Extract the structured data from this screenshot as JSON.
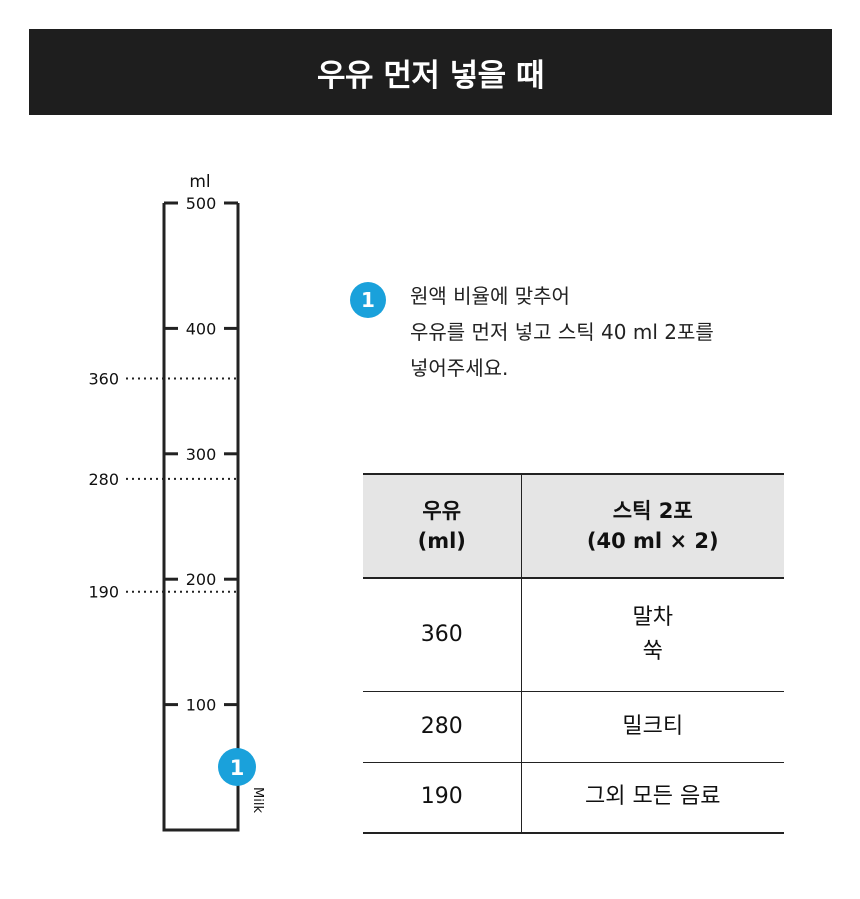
{
  "title": "우유 먼저 넣을 때",
  "gauge": {
    "unit": "ml",
    "max": 500,
    "ticks": [
      500,
      400,
      300,
      200,
      100
    ],
    "dotted_lines": [
      360,
      280,
      190
    ],
    "marker_label": "1",
    "bottom_label": "Milk"
  },
  "step": {
    "number": "1",
    "lines": [
      "원액 비율에 맞추어",
      "우유를 먼저 넣고 스틱 40 ml 2포를",
      "넣어주세요."
    ]
  },
  "table": {
    "header": {
      "col1_line1": "우유",
      "col1_line2": "(ml)",
      "col2_line1": "스틱 2포",
      "col2_line2": "(40 ml × 2)"
    },
    "rows": [
      {
        "milk": "360",
        "drink_line1": "말차",
        "drink_line2": "쑥"
      },
      {
        "milk": "280",
        "drink_line1": "밀크티",
        "drink_line2": ""
      },
      {
        "milk": "190",
        "drink_line1": "그외 모든 음료",
        "drink_line2": ""
      }
    ]
  },
  "colors": {
    "accent": "#1aa1db",
    "title_bg": "#1e1e1e",
    "header_bg": "#e5e5e5"
  }
}
